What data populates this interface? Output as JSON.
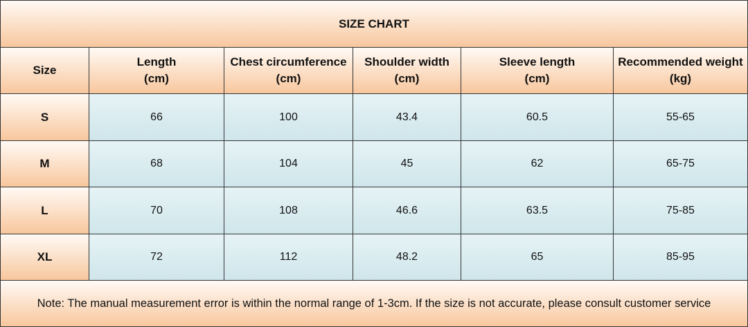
{
  "header": {
    "title": "SIZE CHART"
  },
  "table": {
    "columns": [
      "Size",
      "Length\n(cm)",
      "Chest circumference\n(cm)",
      "Shoulder width\n(cm)",
      "Sleeve length\n(cm)",
      "Recommended weight\n(kg)"
    ],
    "rows": [
      [
        "S",
        66,
        100,
        43.4,
        60.5,
        "55-65"
      ],
      [
        "M",
        68,
        104,
        45,
        62,
        "65-75"
      ],
      [
        "L",
        70,
        108,
        46.6,
        63.5,
        "75-85"
      ],
      [
        "XL",
        72,
        112,
        48.2,
        65,
        "85-95"
      ]
    ]
  },
  "note": "Note: The manual measurement error is within the normal range of 1-3cm. If the size is not accurate, please consult customer service"
}
